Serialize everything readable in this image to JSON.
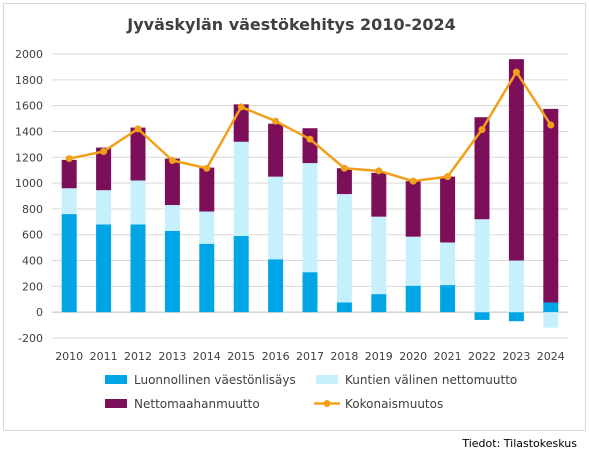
{
  "title": "Jyväskylän väestökehitys 2010-2024",
  "source": "Tiedot: Tilastokeskus",
  "chart_data": {
    "type": "bar",
    "stacked": true,
    "categories": [
      "2010",
      "2011",
      "2012",
      "2013",
      "2014",
      "2015",
      "2016",
      "2017",
      "2018",
      "2019",
      "2020",
      "2021",
      "2022",
      "2023",
      "2024"
    ],
    "ylim": [
      -200,
      2000
    ],
    "yticks": [
      -200,
      0,
      200,
      400,
      600,
      800,
      1000,
      1200,
      1400,
      1600,
      1800,
      2000
    ],
    "ytick_labels": [
      "-200",
      "0",
      "200",
      "400",
      "600",
      "800",
      "1000",
      "1200",
      "1400",
      "1600",
      "1800",
      "2000"
    ],
    "grid": true,
    "legend_position": "bottom",
    "series": [
      {
        "name": "Luonnollinen väestönlisäys",
        "type": "bar",
        "color": "#00a5e6",
        "values": [
          760,
          680,
          680,
          630,
          530,
          590,
          410,
          310,
          75,
          140,
          205,
          210,
          -60,
          -70,
          75
        ]
      },
      {
        "name": "Kuntien välinen nettomuutto",
        "type": "bar",
        "color": "#c6f0fb",
        "values": [
          200,
          265,
          340,
          200,
          250,
          730,
          640,
          845,
          840,
          600,
          380,
          330,
          720,
          400,
          -120
        ]
      },
      {
        "name": "Nettomaahanmuutto",
        "type": "bar",
        "color": "#7d0f5a",
        "values": [
          220,
          330,
          410,
          360,
          340,
          290,
          410,
          270,
          200,
          340,
          430,
          510,
          790,
          1560,
          1500
        ]
      },
      {
        "name": "Kokonaismuutos",
        "type": "line",
        "color": "#f0a019",
        "values": [
          1190,
          1245,
          1420,
          1175,
          1115,
          1590,
          1480,
          1340,
          1115,
          1095,
          1015,
          1050,
          1415,
          1860,
          1450
        ]
      }
    ]
  }
}
